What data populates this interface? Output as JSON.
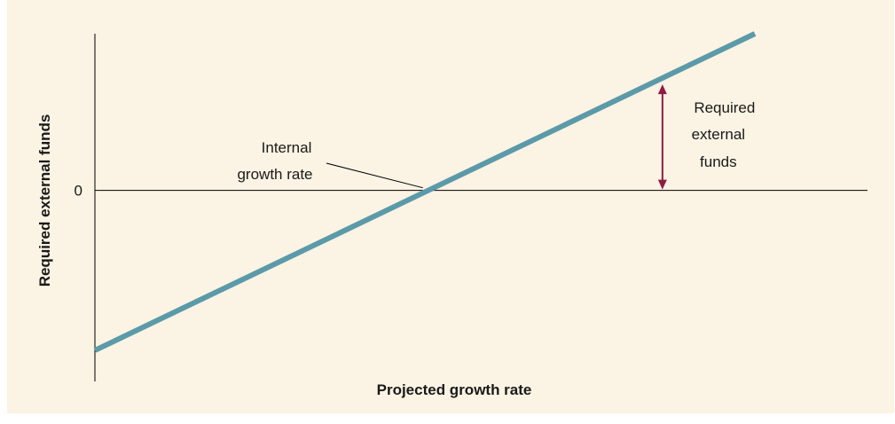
{
  "chart_data": {
    "type": "line",
    "title": "",
    "xlabel": "Projected growth rate",
    "ylabel": "Required external funds",
    "x_tick_labels": [],
    "y_tick_labels": [
      "0"
    ],
    "series": [
      {
        "x": [
          0,
          1
        ],
        "y": [
          -1,
          0.98
        ]
      }
    ],
    "xlim": [
      0,
      1
    ],
    "ylim": [
      -1.1,
      0.98
    ],
    "annotations": {
      "internal_growth_rate": {
        "text_line1": "Internal",
        "text_line2": "growth rate",
        "x": 0.505,
        "y": 0
      },
      "required_external_funds": {
        "text_line1": "Required",
        "text_line2": "external",
        "text_line3": "funds",
        "x": 0.86,
        "y_from": 0,
        "y_to": 0.685
      }
    },
    "grid": false
  },
  "colors": {
    "background": "#fbf3e3",
    "line": "#5b9aa9",
    "arrow": "#8e1b45",
    "axis": "#000000"
  }
}
